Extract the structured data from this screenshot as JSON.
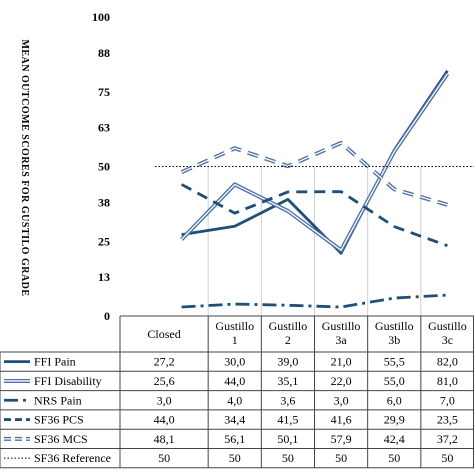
{
  "chart_data": {
    "type": "line",
    "ylabel": "MEAN OUTCOME SCORES FOR GUSTILO GRADE",
    "ylim": [
      0,
      100
    ],
    "yticks": [
      "0",
      "13",
      "25",
      "38",
      "50",
      "63",
      "75",
      "88",
      "100"
    ],
    "categories": [
      "Closed",
      "Gustillo\n1",
      "Gustillo\n2",
      "Gustillo\n3a",
      "Gustillo\n3b",
      "Gustillo\n3c"
    ],
    "series": [
      {
        "name": "FFI Pain",
        "values": [
          27.2,
          30.0,
          39.0,
          21.0,
          55.5,
          82.0
        ],
        "display": [
          "27,2",
          "30,0",
          "39,0",
          "21,0",
          "55,5",
          "82,0"
        ],
        "style": "solid-thick",
        "color": "#1f4e79"
      },
      {
        "name": "FFI Disability",
        "values": [
          25.6,
          44.0,
          35.1,
          22.0,
          55.0,
          81.0
        ],
        "display": [
          "25,6",
          "44,0",
          "35,1",
          "22,0",
          "55,0",
          "81,0"
        ],
        "style": "double",
        "color": "#4f6fa8"
      },
      {
        "name": "NRS Pain",
        "values": [
          3.0,
          4.0,
          3.6,
          3.0,
          6.0,
          7.0
        ],
        "display": [
          "3,0",
          "4,0",
          "3,6",
          "3,0",
          "6,0",
          "7,0"
        ],
        "style": "dashdot",
        "color": "#1f4e79"
      },
      {
        "name": "SF36 PCS",
        "values": [
          44.0,
          34.4,
          41.5,
          41.6,
          29.9,
          23.5
        ],
        "display": [
          "44,0",
          "34,4",
          "41,5",
          "41,6",
          "29,9",
          "23,5"
        ],
        "style": "dashed",
        "color": "#1f4e79"
      },
      {
        "name": "SF36 MCS",
        "values": [
          48.1,
          56.1,
          50.1,
          57.9,
          42.4,
          37.2
        ],
        "display": [
          "48,1",
          "56,1",
          "50,1",
          "57,9",
          "42,4",
          "37,2"
        ],
        "style": "dashed-double",
        "color": "#4f6fa8"
      },
      {
        "name": "SF36 Reference",
        "values": [
          50,
          50,
          50,
          50,
          50,
          50
        ],
        "display": [
          "50",
          "50",
          "50",
          "50",
          "50",
          "50"
        ],
        "style": "dotted",
        "color": "#000000"
      }
    ]
  }
}
